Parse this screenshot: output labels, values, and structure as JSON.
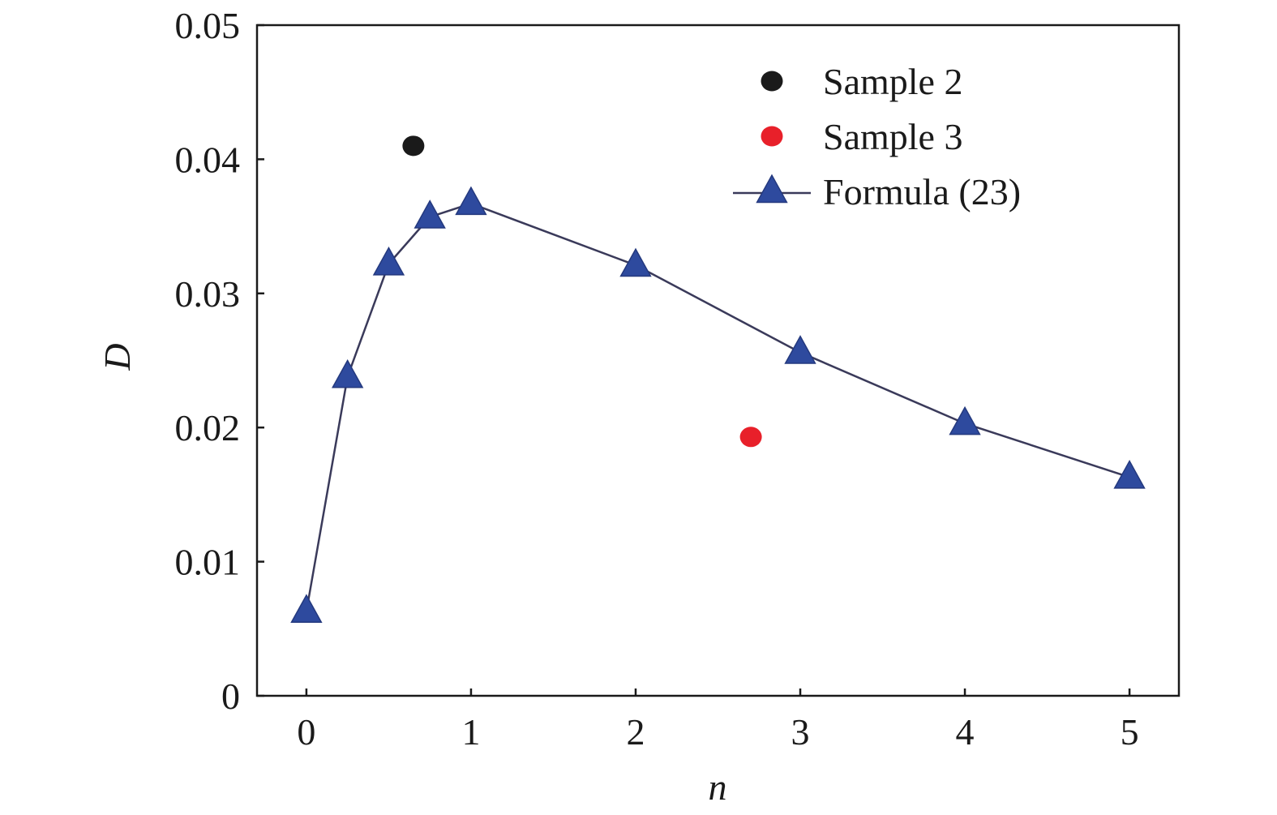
{
  "chart_data": {
    "type": "scatter",
    "xlabel": "n",
    "ylabel": "D",
    "xlim": [
      -0.3,
      5.3
    ],
    "ylim": [
      0,
      0.05
    ],
    "xticks": [
      0,
      1,
      2,
      3,
      4,
      5
    ],
    "xtick_labels": [
      "0",
      "1",
      "2",
      "3",
      "4",
      "5"
    ],
    "yticks": [
      0,
      0.01,
      0.02,
      0.03,
      0.04,
      0.05
    ],
    "ytick_labels": [
      "0",
      "0.01",
      "0.02",
      "0.03",
      "0.04",
      "0.05"
    ],
    "grid": false,
    "legend_position": "top-right",
    "series": [
      {
        "name": "Sample 2",
        "kind": "scatter",
        "marker": "circle",
        "color": "#1a1a1a",
        "x": [
          0.65
        ],
        "y": [
          0.041
        ]
      },
      {
        "name": "Sample 3",
        "kind": "scatter",
        "marker": "circle",
        "color": "#e8202a",
        "x": [
          2.7
        ],
        "y": [
          0.0193
        ]
      },
      {
        "name": "Formula (23)",
        "kind": "line",
        "marker": "triangle",
        "color": "#2e4a9e",
        "line_color": "#3a3a5a",
        "x": [
          0,
          0.25,
          0.5,
          0.75,
          1,
          2,
          3,
          4,
          5
        ],
        "y": [
          0.0063,
          0.0238,
          0.0322,
          0.0357,
          0.0367,
          0.0321,
          0.0256,
          0.0203,
          0.0163
        ]
      }
    ]
  }
}
